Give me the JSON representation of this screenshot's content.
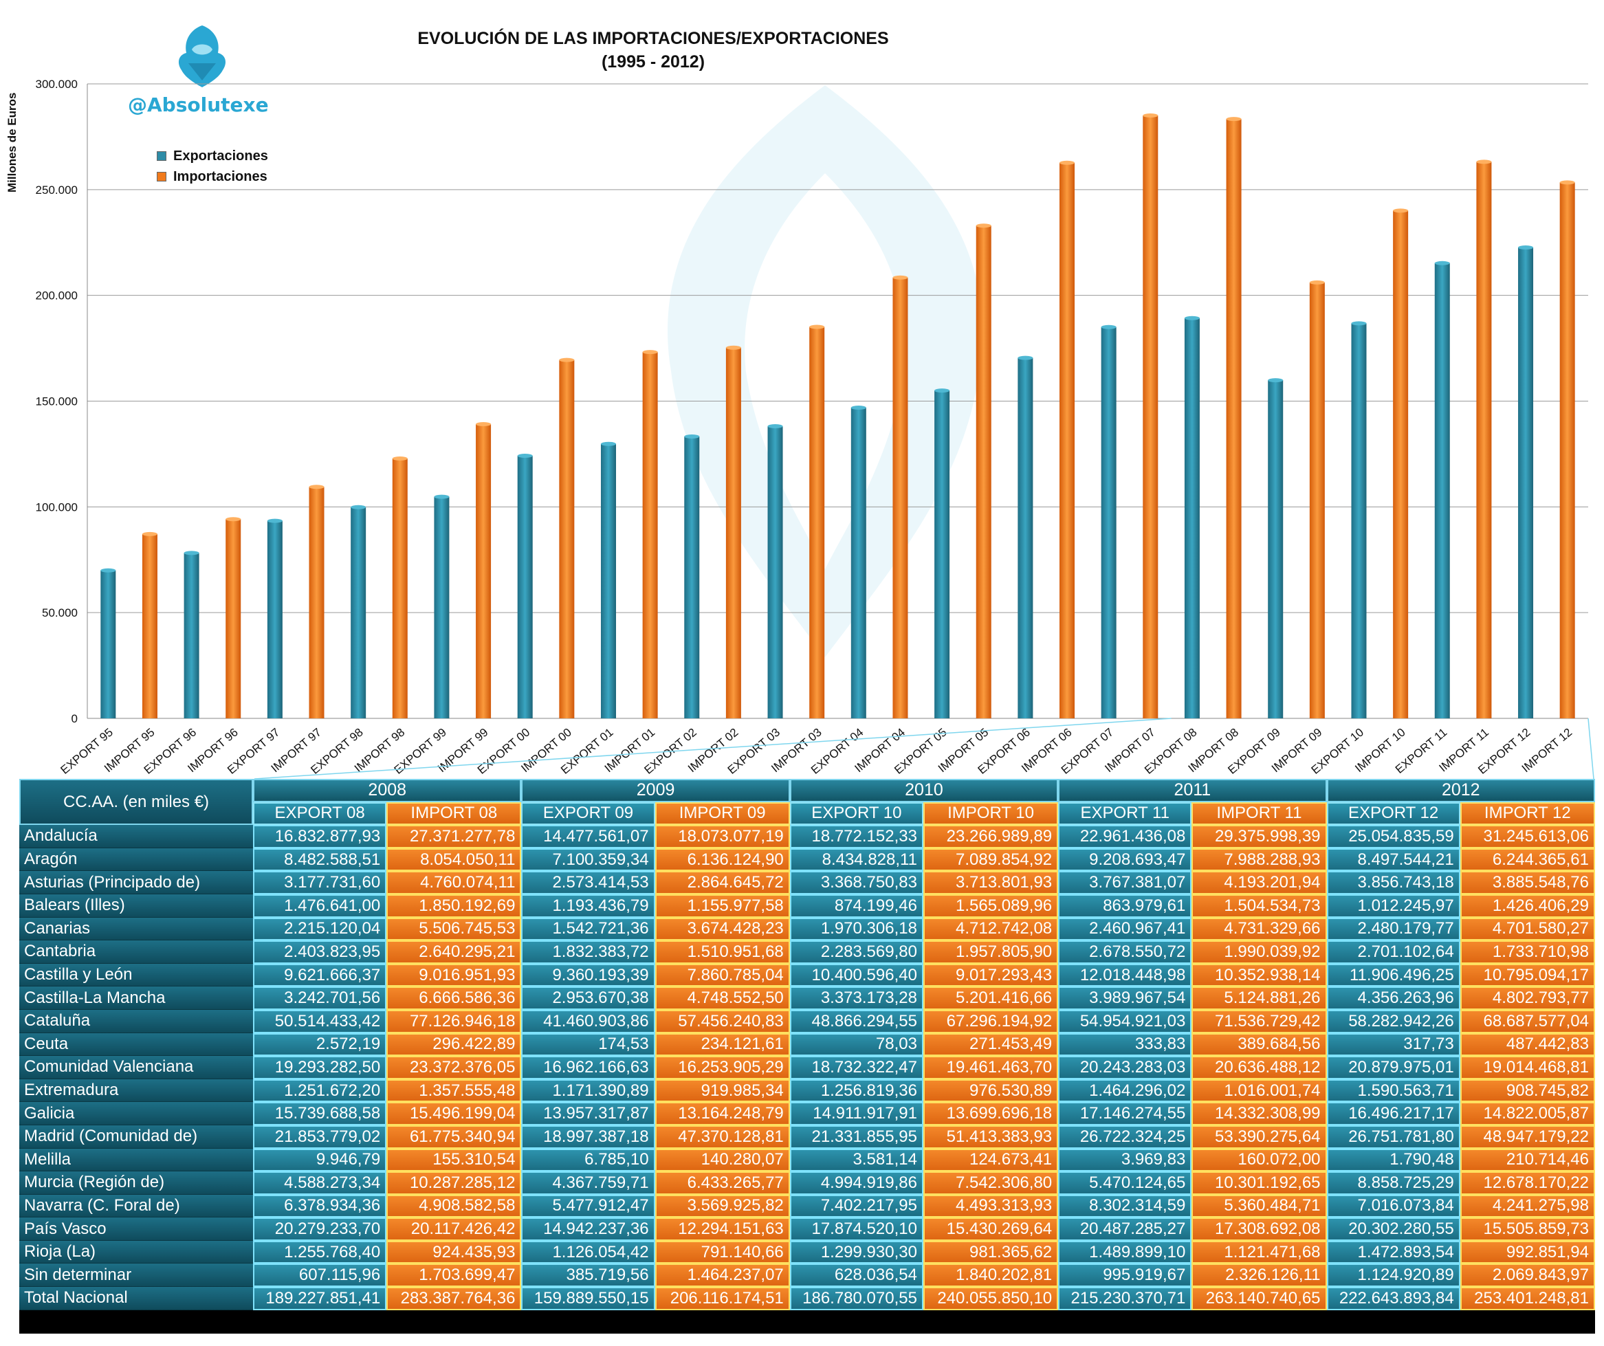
{
  "brand": "@Absolutexe",
  "chart_data": {
    "type": "bar",
    "title": "EVOLUCIÓN DE LAS IMPORTACIONES/EXPORTACIONES",
    "subtitle": "(1995 - 2012)",
    "ylabel": "Millones de Euros",
    "xlabel": "",
    "ylim": [
      0,
      300000
    ],
    "yticks": [
      "0",
      "50.000",
      "100.000",
      "150.000",
      "200.000",
      "250.000",
      "300.000"
    ],
    "grid": true,
    "legend_position": "top-left",
    "series": [
      {
        "name": "Exportaciones",
        "color": "#2e8ca7"
      },
      {
        "name": "Importaciones",
        "color": "#f07a1c"
      }
    ],
    "categories": [
      "EXPORT 95",
      "IMPORT 95",
      "EXPORT 96",
      "IMPORT 96",
      "EXPORT 97",
      "IMPORT 97",
      "EXPORT 98",
      "IMPORT 98",
      "EXPORT 99",
      "IMPORT 99",
      "EXPORT 00",
      "IMPORT 00",
      "EXPORT 01",
      "IMPORT 01",
      "EXPORT 02",
      "IMPORT 02",
      "EXPORT 03",
      "IMPORT 03",
      "EXPORT 04",
      "IMPORT 04",
      "EXPORT 05",
      "IMPORT 05",
      "EXPORT 06",
      "IMPORT 06",
      "EXPORT 07",
      "IMPORT 07",
      "EXPORT 08",
      "IMPORT 08",
      "EXPORT 09",
      "IMPORT 09",
      "EXPORT 10",
      "IMPORT 10",
      "EXPORT 11",
      "IMPORT 11",
      "EXPORT 12",
      "IMPORT 12"
    ],
    "values": [
      69962,
      87142,
      78212,
      94179,
      93419,
      109469,
      99850,
      122856,
      104789,
      139094,
      124177,
      169468,
      129771,
      173210,
      133268,
      175268,
      138119,
      185114,
      146925,
      208411,
      155005,
      232954,
      170439,
      262687,
      185023,
      285038,
      189228,
      283388,
      159890,
      206116,
      186780,
      240056,
      215230,
      263141,
      222644,
      253401
    ]
  },
  "table": {
    "corner_label": "CC.AA. (en miles €)",
    "years": [
      "2008",
      "2009",
      "2010",
      "2011",
      "2012"
    ],
    "subheaders": [
      "EXPORT 08",
      "IMPORT 08",
      "EXPORT 09",
      "IMPORT 09",
      "EXPORT 10",
      "IMPORT 10",
      "EXPORT 11",
      "IMPORT 11",
      "EXPORT 12",
      "IMPORT 12"
    ],
    "rows": [
      {
        "name": "Andalucía",
        "values": [
          "16.832.877,93",
          "27.371.277,78",
          "14.477.561,07",
          "18.073.077,19",
          "18.772.152,33",
          "23.266.989,89",
          "22.961.436,08",
          "29.375.998,39",
          "25.054.835,59",
          "31.245.613,06"
        ]
      },
      {
        "name": "Aragón",
        "values": [
          "8.482.588,51",
          "8.054.050,11",
          "7.100.359,34",
          "6.136.124,90",
          "8.434.828,11",
          "7.089.854,92",
          "9.208.693,47",
          "7.988.288,93",
          "8.497.544,21",
          "6.244.365,61"
        ]
      },
      {
        "name": "Asturias (Principado de)",
        "values": [
          "3.177.731,60",
          "4.760.074,11",
          "2.573.414,53",
          "2.864.645,72",
          "3.368.750,83",
          "3.713.801,93",
          "3.767.381,07",
          "4.193.201,94",
          "3.856.743,18",
          "3.885.548,76"
        ]
      },
      {
        "name": "Balears (Illes)",
        "values": [
          "1.476.641,00",
          "1.850.192,69",
          "1.193.436,79",
          "1.155.977,58",
          "874.199,46",
          "1.565.089,96",
          "863.979,61",
          "1.504.534,73",
          "1.012.245,97",
          "1.426.406,29"
        ]
      },
      {
        "name": "Canarias",
        "values": [
          "2.215.120,04",
          "5.506.745,53",
          "1.542.721,36",
          "3.674.428,23",
          "1.970.306,18",
          "4.712.742,08",
          "2.460.967,41",
          "4.731.329,66",
          "2.480.179,77",
          "4.701.580,27"
        ]
      },
      {
        "name": "Cantabria",
        "values": [
          "2.403.823,95",
          "2.640.295,21",
          "1.832.383,72",
          "1.510.951,68",
          "2.283.569,80",
          "1.957.805,90",
          "2.678.550,72",
          "1.990.039,92",
          "2.701.102,64",
          "1.733.710,98"
        ]
      },
      {
        "name": "Castilla y León",
        "values": [
          "9.621.666,37",
          "9.016.951,93",
          "9.360.193,39",
          "7.860.785,04",
          "10.400.596,40",
          "9.017.293,43",
          "12.018.448,98",
          "10.352.938,14",
          "11.906.496,25",
          "10.795.094,17"
        ]
      },
      {
        "name": "Castilla-La Mancha",
        "values": [
          "3.242.701,56",
          "6.666.586,36",
          "2.953.670,38",
          "4.748.552,50",
          "3.373.173,28",
          "5.201.416,66",
          "3.989.967,54",
          "5.124.881,26",
          "4.356.263,96",
          "4.802.793,77"
        ]
      },
      {
        "name": "Cataluña",
        "values": [
          "50.514.433,42",
          "77.126.946,18",
          "41.460.903,86",
          "57.456.240,83",
          "48.866.294,55",
          "67.296.194,92",
          "54.954.921,03",
          "71.536.729,42",
          "58.282.942,26",
          "68.687.577,04"
        ]
      },
      {
        "name": "Ceuta",
        "values": [
          "2.572,19",
          "296.422,89",
          "174,53",
          "234.121,61",
          "78,03",
          "271.453,49",
          "333,83",
          "389.684,56",
          "317,73",
          "487.442,83"
        ]
      },
      {
        "name": "Comunidad Valenciana",
        "values": [
          "19.293.282,50",
          "23.372.376,05",
          "16.962.166,63",
          "16.253.905,29",
          "18.732.322,47",
          "19.461.463,70",
          "20.243.283,03",
          "20.636.488,12",
          "20.879.975,01",
          "19.014.468,81"
        ]
      },
      {
        "name": "Extremadura",
        "values": [
          "1.251.672,20",
          "1.357.555,48",
          "1.171.390,89",
          "919.985,34",
          "1.256.819,36",
          "976.530,89",
          "1.464.296,02",
          "1.016.001,74",
          "1.590.563,71",
          "908.745,82"
        ]
      },
      {
        "name": "Galicia",
        "values": [
          "15.739.688,58",
          "15.496.199,04",
          "13.957.317,87",
          "13.164.248,79",
          "14.911.917,91",
          "13.699.696,18",
          "17.146.274,55",
          "14.332.308,99",
          "16.496.217,17",
          "14.822.005,87"
        ]
      },
      {
        "name": "Madrid (Comunidad de)",
        "values": [
          "21.853.779,02",
          "61.775.340,94",
          "18.997.387,18",
          "47.370.128,81",
          "21.331.855,95",
          "51.413.383,93",
          "26.722.324,25",
          "53.390.275,64",
          "26.751.781,80",
          "48.947.179,22"
        ]
      },
      {
        "name": "Melilla",
        "values": [
          "9.946,79",
          "155.310,54",
          "6.785,10",
          "140.280,07",
          "3.581,14",
          "124.673,41",
          "3.969,83",
          "160.072,00",
          "1.790,48",
          "210.714,46"
        ]
      },
      {
        "name": "Murcia (Región de)",
        "values": [
          "4.588.273,34",
          "10.287.285,12",
          "4.367.759,71",
          "6.433.265,77",
          "4.994.919,86",
          "7.542.306,80",
          "5.470.124,65",
          "10.301.192,65",
          "8.858.725,29",
          "12.678.170,22"
        ]
      },
      {
        "name": "Navarra (C. Foral de)",
        "values": [
          "6.378.934,36",
          "4.908.582,58",
          "5.477.912,47",
          "3.569.925,82",
          "7.402.217,95",
          "4.493.313,93",
          "8.302.314,59",
          "5.360.484,71",
          "7.016.073,84",
          "4.241.275,98"
        ]
      },
      {
        "name": "País Vasco",
        "values": [
          "20.279.233,70",
          "20.117.426,42",
          "14.942.237,36",
          "12.294.151,63",
          "17.874.520,10",
          "15.430.269,64",
          "20.487.285,27",
          "17.308.692,08",
          "20.302.280,55",
          "15.505.859,73"
        ]
      },
      {
        "name": "Rioja (La)",
        "values": [
          "1.255.768,40",
          "924.435,93",
          "1.126.054,42",
          "791.140,66",
          "1.299.930,30",
          "981.365,62",
          "1.489.899,10",
          "1.121.471,68",
          "1.472.893,54",
          "992.851,94"
        ]
      },
      {
        "name": "Sin determinar",
        "values": [
          "607.115,96",
          "1.703.699,47",
          "385.719,56",
          "1.464.237,07",
          "628.036,54",
          "1.840.202,81",
          "995.919,67",
          "2.326.126,11",
          "1.124.920,89",
          "2.069.843,97"
        ]
      },
      {
        "name": "Total Nacional",
        "values": [
          "189.227.851,41",
          "283.387.764,36",
          "159.889.550,15",
          "206.116.174,51",
          "186.780.070,55",
          "240.055.850,10",
          "215.230.370,71",
          "263.140.740,65",
          "222.643.893,84",
          "253.401.248,81"
        ]
      }
    ]
  }
}
